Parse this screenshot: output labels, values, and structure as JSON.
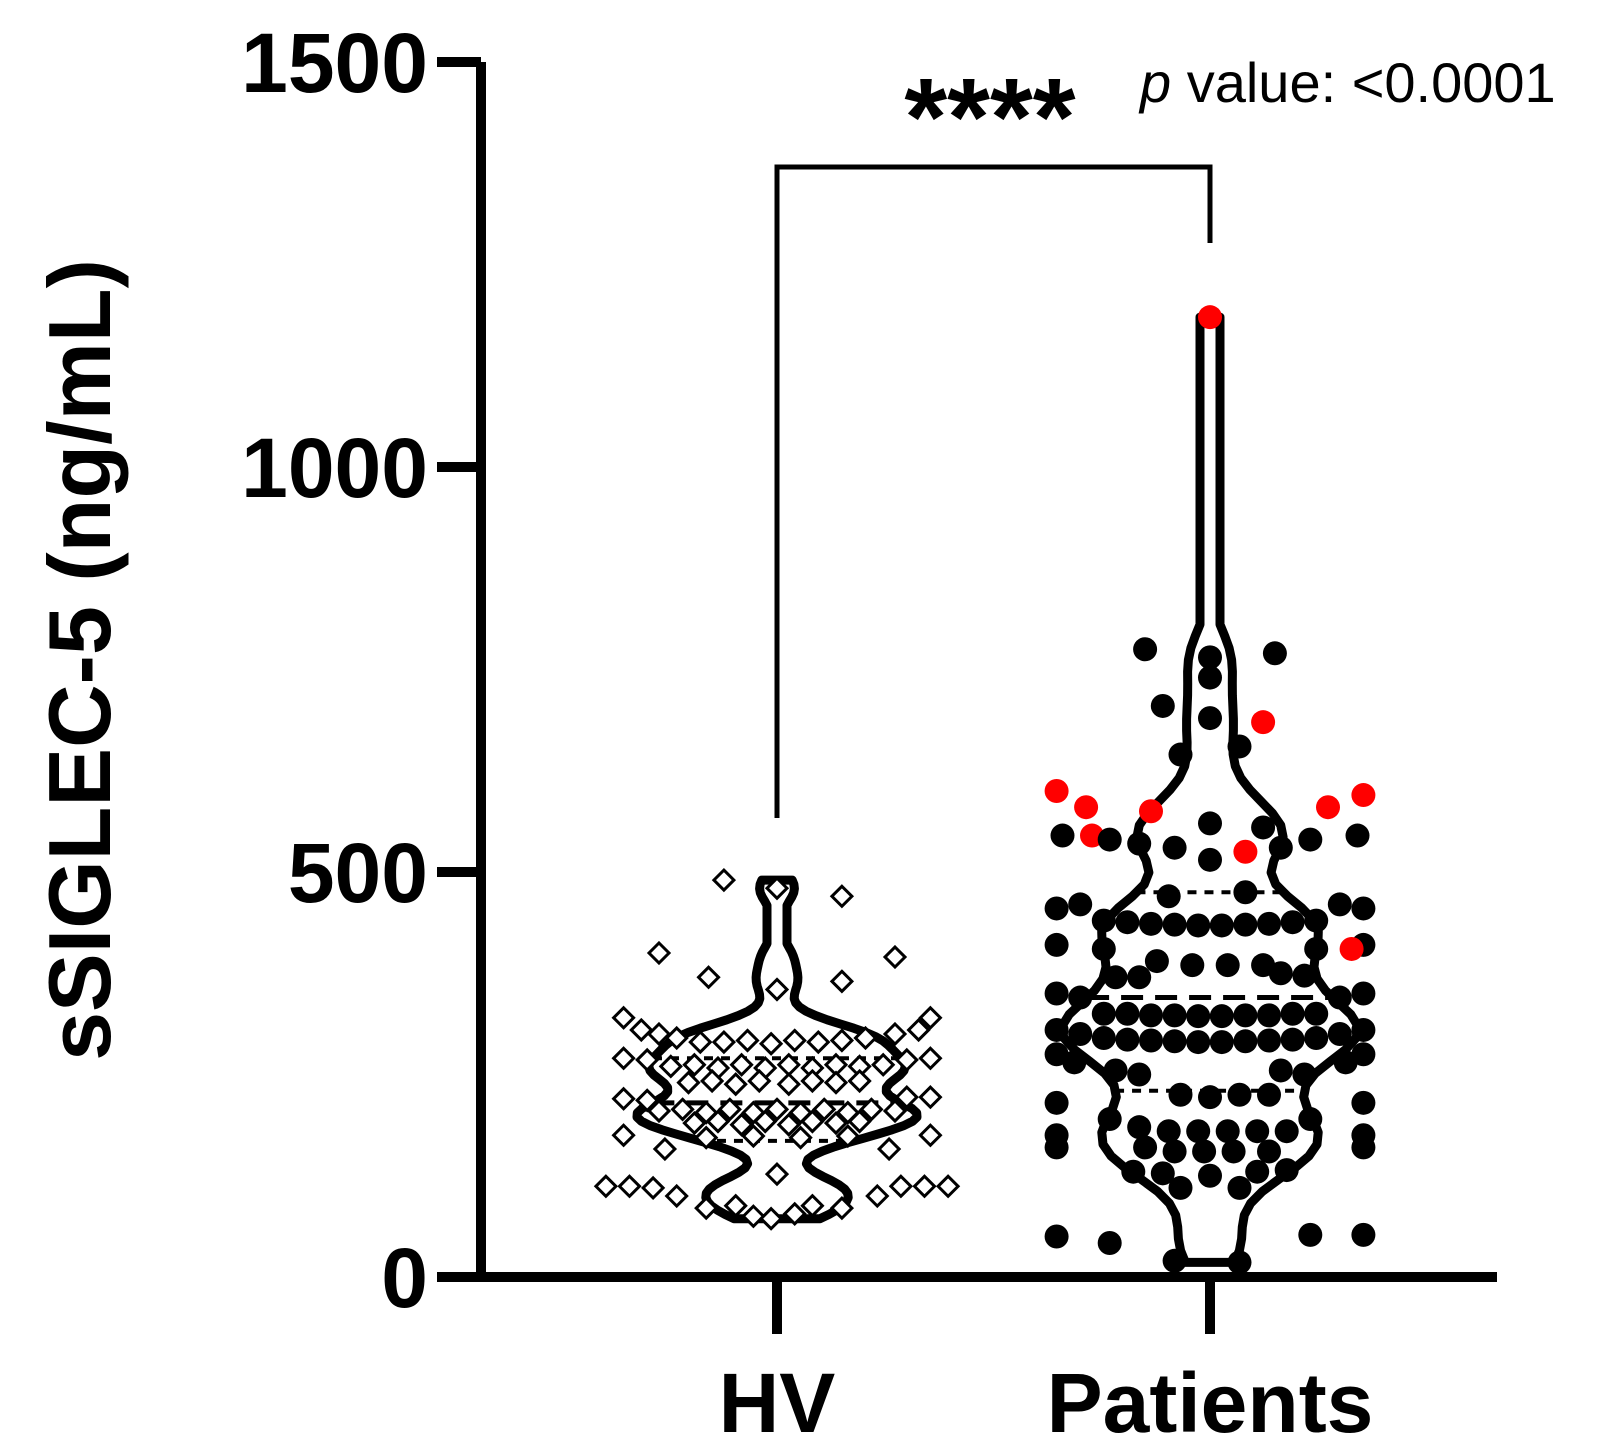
{
  "chart_data": {
    "type": "violin",
    "title": "",
    "ylabel": "sSIGLEC-5 (ng/mL)",
    "xlabel": "",
    "ylim": [
      0,
      1500
    ],
    "yticks": [
      0,
      500,
      1000,
      1500
    ],
    "categories": [
      "HV",
      "Patients"
    ],
    "significance": {
      "stars": "****",
      "p_prefix": "p",
      "p_text": " value: <0.0001"
    },
    "colors": {
      "main": "#000000",
      "highlight": "#ff0000",
      "hv_fill": "#ffffff"
    },
    "groups": [
      {
        "name": "HV",
        "marker": "open-diamond",
        "median": 215,
        "q1": 168,
        "q3": 270,
        "points": [
          {
            "v": 490,
            "o": -0.45
          },
          {
            "v": 480,
            "o": 0.0
          },
          {
            "v": 470,
            "o": 0.55
          },
          {
            "v": 400,
            "o": -1.0
          },
          {
            "v": 395,
            "o": 1.0
          },
          {
            "v": 370,
            "o": -0.58
          },
          {
            "v": 365,
            "o": 0.55
          },
          {
            "v": 355,
            "o": 0.0
          },
          {
            "v": 320,
            "o": -1.3
          },
          {
            "v": 320,
            "o": 1.3
          },
          {
            "v": 305,
            "o": -1.15
          },
          {
            "v": 305,
            "o": 1.2
          },
          {
            "v": 300,
            "o": -1.0
          },
          {
            "v": 295,
            "o": -0.85
          },
          {
            "v": 290,
            "o": -0.65
          },
          {
            "v": 290,
            "o": -0.45
          },
          {
            "v": 292,
            "o": -0.25
          },
          {
            "v": 288,
            "o": -0.05
          },
          {
            "v": 292,
            "o": 0.15
          },
          {
            "v": 290,
            "o": 0.35
          },
          {
            "v": 292,
            "o": 0.55
          },
          {
            "v": 295,
            "o": 0.75
          },
          {
            "v": 300,
            "o": 1.0
          },
          {
            "v": 270,
            "o": -1.3
          },
          {
            "v": 270,
            "o": 1.3
          },
          {
            "v": 268,
            "o": -1.1
          },
          {
            "v": 268,
            "o": 1.1
          },
          {
            "v": 260,
            "o": -0.9
          },
          {
            "v": 262,
            "o": -0.7
          },
          {
            "v": 258,
            "o": -0.5
          },
          {
            "v": 262,
            "o": -0.3
          },
          {
            "v": 258,
            "o": -0.1
          },
          {
            "v": 262,
            "o": 0.1
          },
          {
            "v": 258,
            "o": 0.3
          },
          {
            "v": 262,
            "o": 0.5
          },
          {
            "v": 260,
            "o": 0.7
          },
          {
            "v": 262,
            "o": 0.9
          },
          {
            "v": 240,
            "o": -0.75
          },
          {
            "v": 242,
            "o": -0.55
          },
          {
            "v": 238,
            "o": -0.35
          },
          {
            "v": 242,
            "o": -0.15
          },
          {
            "v": 238,
            "o": 0.1
          },
          {
            "v": 242,
            "o": 0.3
          },
          {
            "v": 240,
            "o": 0.5
          },
          {
            "v": 242,
            "o": 0.7
          },
          {
            "v": 220,
            "o": -1.3
          },
          {
            "v": 222,
            "o": 1.3
          },
          {
            "v": 218,
            "o": -1.1
          },
          {
            "v": 222,
            "o": 1.1
          },
          {
            "v": 205,
            "o": -1.0
          },
          {
            "v": 207,
            "o": -0.8
          },
          {
            "v": 203,
            "o": -0.6
          },
          {
            "v": 207,
            "o": -0.4
          },
          {
            "v": 203,
            "o": -0.2
          },
          {
            "v": 207,
            "o": 0.0
          },
          {
            "v": 203,
            "o": 0.2
          },
          {
            "v": 207,
            "o": 0.4
          },
          {
            "v": 203,
            "o": 0.6
          },
          {
            "v": 207,
            "o": 0.8
          },
          {
            "v": 205,
            "o": 1.0
          },
          {
            "v": 190,
            "o": -0.7
          },
          {
            "v": 192,
            "o": -0.5
          },
          {
            "v": 188,
            "o": -0.3
          },
          {
            "v": 192,
            "o": -0.1
          },
          {
            "v": 188,
            "o": 0.1
          },
          {
            "v": 192,
            "o": 0.3
          },
          {
            "v": 190,
            "o": 0.5
          },
          {
            "v": 192,
            "o": 0.7
          },
          {
            "v": 175,
            "o": -1.3
          },
          {
            "v": 175,
            "o": 1.3
          },
          {
            "v": 172,
            "o": -0.6
          },
          {
            "v": 174,
            "o": -0.2
          },
          {
            "v": 172,
            "o": 0.2
          },
          {
            "v": 174,
            "o": 0.6
          },
          {
            "v": 158,
            "o": -0.95
          },
          {
            "v": 158,
            "o": 0.95
          },
          {
            "v": 127,
            "o": 0.0
          },
          {
            "v": 112,
            "o": -1.45
          },
          {
            "v": 112,
            "o": -1.25
          },
          {
            "v": 110,
            "o": -1.05
          },
          {
            "v": 112,
            "o": 1.05
          },
          {
            "v": 112,
            "o": 1.25
          },
          {
            "v": 112,
            "o": 1.45
          },
          {
            "v": 100,
            "o": -0.85
          },
          {
            "v": 100,
            "o": 0.85
          },
          {
            "v": 85,
            "o": -0.6
          },
          {
            "v": 85,
            "o": 0.55
          },
          {
            "v": 88,
            "o": -0.35
          },
          {
            "v": 88,
            "o": 0.3
          },
          {
            "v": 75,
            "o": -0.2
          },
          {
            "v": 78,
            "o": 0.15
          },
          {
            "v": 72,
            "o": -0.05
          }
        ]
      },
      {
        "name": "Patients",
        "marker": "filled-circle",
        "median": 345,
        "q1": 230,
        "q3": 475,
        "points": [
          {
            "v": 1185,
            "o": 0.0,
            "r": true
          },
          {
            "v": 775,
            "o": -0.55
          },
          {
            "v": 765,
            "o": 0.0
          },
          {
            "v": 770,
            "o": 0.55
          },
          {
            "v": 740,
            "o": 0.0
          },
          {
            "v": 705,
            "o": -0.4
          },
          {
            "v": 690,
            "o": 0.0
          },
          {
            "v": 685,
            "o": 0.45,
            "r": true
          },
          {
            "v": 645,
            "o": -0.25
          },
          {
            "v": 655,
            "o": 0.25
          },
          {
            "v": 600,
            "o": -1.3,
            "r": true
          },
          {
            "v": 595,
            "o": 1.3,
            "r": true
          },
          {
            "v": 580,
            "o": -1.05,
            "r": true
          },
          {
            "v": 575,
            "o": -0.5,
            "r": true
          },
          {
            "v": 580,
            "o": 1.0,
            "r": true
          },
          {
            "v": 560,
            "o": 0.0
          },
          {
            "v": 555,
            "o": 0.45
          },
          {
            "v": 545,
            "o": -1.25
          },
          {
            "v": 545,
            "o": 1.25
          },
          {
            "v": 545,
            "o": -1.0,
            "r": true
          },
          {
            "v": 540,
            "o": -0.85
          },
          {
            "v": 535,
            "o": -0.6
          },
          {
            "v": 530,
            "o": -0.3
          },
          {
            "v": 515,
            "o": 0.0
          },
          {
            "v": 525,
            "o": 0.3,
            "r": true
          },
          {
            "v": 530,
            "o": 0.6
          },
          {
            "v": 540,
            "o": 0.85
          },
          {
            "v": 470,
            "o": -0.35
          },
          {
            "v": 475,
            "o": 0.3
          },
          {
            "v": 455,
            "o": -1.3
          },
          {
            "v": 455,
            "o": 1.3
          },
          {
            "v": 460,
            "o": -1.1
          },
          {
            "v": 460,
            "o": 1.1
          },
          {
            "v": 440,
            "o": -0.9
          },
          {
            "v": 438,
            "o": -0.7
          },
          {
            "v": 436,
            "o": -0.5
          },
          {
            "v": 435,
            "o": -0.3
          },
          {
            "v": 434,
            "o": -0.1
          },
          {
            "v": 434,
            "o": 0.1
          },
          {
            "v": 435,
            "o": 0.3
          },
          {
            "v": 436,
            "o": 0.5
          },
          {
            "v": 438,
            "o": 0.7
          },
          {
            "v": 440,
            "o": 0.9
          },
          {
            "v": 410,
            "o": -1.3
          },
          {
            "v": 410,
            "o": 1.3
          },
          {
            "v": 405,
            "o": -0.9
          },
          {
            "v": 405,
            "o": 0.9
          },
          {
            "v": 405,
            "o": 1.2,
            "r": true
          },
          {
            "v": 390,
            "o": -0.45
          },
          {
            "v": 385,
            "o": -0.15
          },
          {
            "v": 385,
            "o": 0.15
          },
          {
            "v": 385,
            "o": 0.45
          },
          {
            "v": 370,
            "o": -0.8
          },
          {
            "v": 370,
            "o": -0.6
          },
          {
            "v": 375,
            "o": 0.6
          },
          {
            "v": 372,
            "o": 0.8
          },
          {
            "v": 350,
            "o": -1.3
          },
          {
            "v": 350,
            "o": 1.3
          },
          {
            "v": 345,
            "o": -1.1
          },
          {
            "v": 345,
            "o": 1.1
          },
          {
            "v": 325,
            "o": -0.9
          },
          {
            "v": 325,
            "o": -0.7
          },
          {
            "v": 323,
            "o": -0.5
          },
          {
            "v": 323,
            "o": -0.3
          },
          {
            "v": 322,
            "o": -0.1
          },
          {
            "v": 322,
            "o": 0.1
          },
          {
            "v": 323,
            "o": 0.3
          },
          {
            "v": 323,
            "o": 0.5
          },
          {
            "v": 325,
            "o": 0.7
          },
          {
            "v": 325,
            "o": 0.9
          },
          {
            "v": 305,
            "o": -1.3
          },
          {
            "v": 305,
            "o": 1.3
          },
          {
            "v": 300,
            "o": -1.1
          },
          {
            "v": 300,
            "o": 1.1
          },
          {
            "v": 295,
            "o": -0.9
          },
          {
            "v": 293,
            "o": -0.7
          },
          {
            "v": 292,
            "o": -0.5
          },
          {
            "v": 291,
            "o": -0.3
          },
          {
            "v": 290,
            "o": -0.1
          },
          {
            "v": 290,
            "o": 0.1
          },
          {
            "v": 291,
            "o": 0.3
          },
          {
            "v": 292,
            "o": 0.5
          },
          {
            "v": 293,
            "o": 0.7
          },
          {
            "v": 295,
            "o": 0.9
          },
          {
            "v": 275,
            "o": -1.3
          },
          {
            "v": 275,
            "o": 1.3
          },
          {
            "v": 265,
            "o": -1.15
          },
          {
            "v": 265,
            "o": 1.15
          },
          {
            "v": 255,
            "o": -0.8
          },
          {
            "v": 250,
            "o": -0.6
          },
          {
            "v": 255,
            "o": 0.6
          },
          {
            "v": 250,
            "o": 0.8
          },
          {
            "v": 225,
            "o": -0.25
          },
          {
            "v": 222,
            "o": 0.0
          },
          {
            "v": 225,
            "o": 0.25
          },
          {
            "v": 225,
            "o": 0.5
          },
          {
            "v": 215,
            "o": -1.3
          },
          {
            "v": 215,
            "o": 1.3
          },
          {
            "v": 195,
            "o": -0.85
          },
          {
            "v": 195,
            "o": 0.85
          },
          {
            "v": 175,
            "o": -1.3
          },
          {
            "v": 175,
            "o": 1.3
          },
          {
            "v": 185,
            "o": -0.6
          },
          {
            "v": 180,
            "o": -0.35
          },
          {
            "v": 180,
            "o": -0.1
          },
          {
            "v": 180,
            "o": 0.15
          },
          {
            "v": 180,
            "o": 0.4
          },
          {
            "v": 180,
            "o": 0.65
          },
          {
            "v": 160,
            "o": -1.3
          },
          {
            "v": 160,
            "o": 1.3
          },
          {
            "v": 160,
            "o": -0.55
          },
          {
            "v": 155,
            "o": -0.3
          },
          {
            "v": 155,
            "o": -0.05
          },
          {
            "v": 155,
            "o": 0.2
          },
          {
            "v": 155,
            "o": 0.5
          },
          {
            "v": 130,
            "o": -0.65
          },
          {
            "v": 128,
            "o": -0.4
          },
          {
            "v": 125,
            "o": 0.0
          },
          {
            "v": 130,
            "o": 0.4
          },
          {
            "v": 132,
            "o": 0.65
          },
          {
            "v": 110,
            "o": -0.25
          },
          {
            "v": 110,
            "o": 0.25
          },
          {
            "v": 50,
            "o": -1.3
          },
          {
            "v": 42,
            "o": -0.85
          },
          {
            "v": 52,
            "o": 0.85
          },
          {
            "v": 52,
            "o": 1.3
          },
          {
            "v": 20,
            "o": -0.3
          },
          {
            "v": 18,
            "o": 0.25
          }
        ]
      }
    ]
  }
}
